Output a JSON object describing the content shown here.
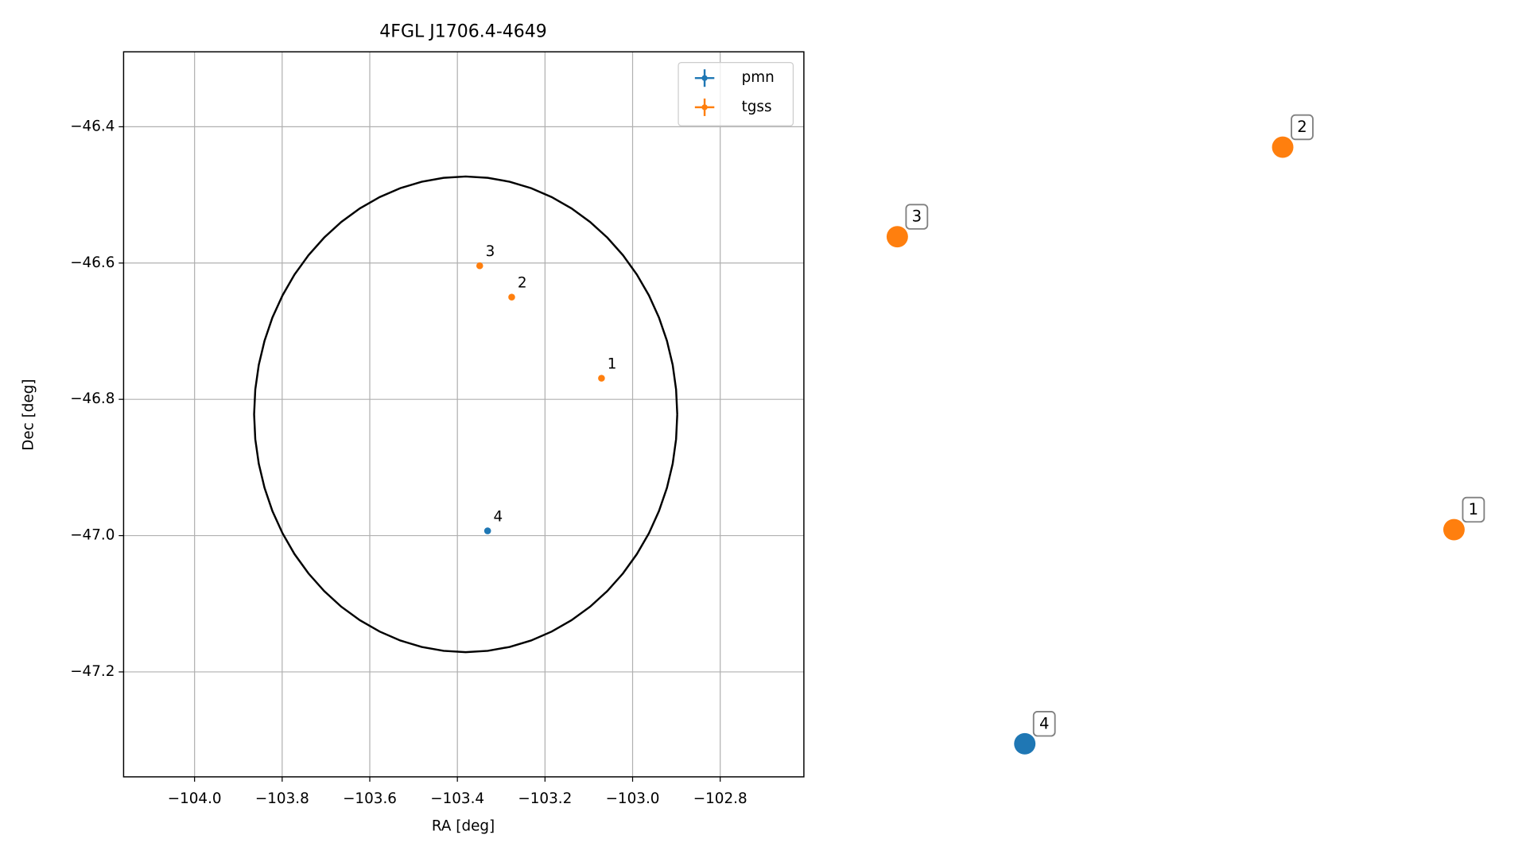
{
  "chart_data": {
    "type": "scatter",
    "title": "4FGL J1706.4-4649",
    "xlabel": "RA [deg]",
    "ylabel": "Dec [deg]",
    "xlim": [
      -104.162,
      -102.609
    ],
    "ylim": [
      -47.354,
      -46.29
    ],
    "xticks": [
      {
        "value": -104.0,
        "label": "−104.0"
      },
      {
        "value": -103.8,
        "label": "−103.8"
      },
      {
        "value": -103.6,
        "label": "−103.6"
      },
      {
        "value": -103.4,
        "label": "−103.4"
      },
      {
        "value": -103.2,
        "label": "−103.2"
      },
      {
        "value": -103.0,
        "label": "−103.0"
      },
      {
        "value": -102.8,
        "label": "−102.8"
      }
    ],
    "yticks": [
      {
        "value": -46.4,
        "label": "−46.4"
      },
      {
        "value": -46.6,
        "label": "−46.6"
      },
      {
        "value": -46.8,
        "label": "−46.8"
      },
      {
        "value": -47.0,
        "label": "−47.0"
      },
      {
        "value": -47.2,
        "label": "−47.2"
      }
    ],
    "grid": true,
    "legend": "upper right",
    "ellipse": {
      "x": -103.381,
      "y": -46.822,
      "rx": 0.483,
      "ry": 0.349,
      "color": "#000000"
    },
    "series": [
      {
        "name": "pmn",
        "color": "#1f77b4",
        "x": [
          -103.331
        ],
        "values": [
          -46.993
        ],
        "labels": [
          "4"
        ]
      },
      {
        "name": "tgss",
        "color": "#ff7f0e",
        "x": [
          -103.071,
          -103.276,
          -103.349
        ],
        "values": [
          -46.769,
          -46.65,
          -46.604
        ],
        "labels": [
          "1",
          "2",
          "3"
        ]
      }
    ]
  }
}
